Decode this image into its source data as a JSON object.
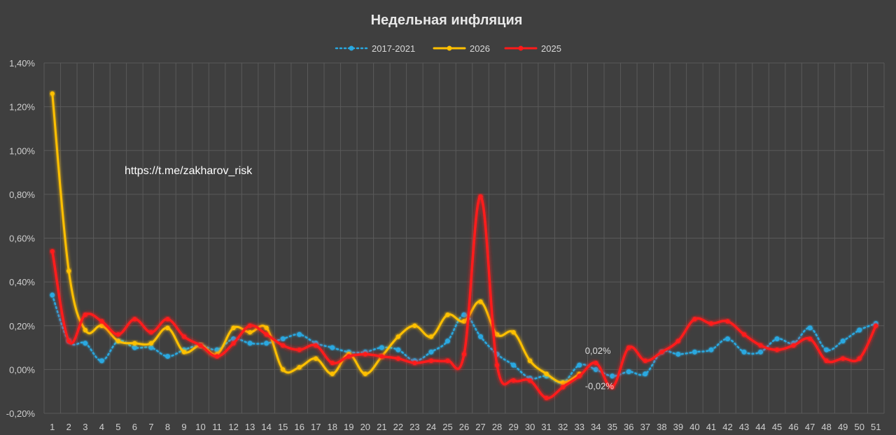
{
  "chart_data": {
    "type": "line",
    "title": "Недельная инфляция",
    "watermark": "https://t.me/zakharov_risk",
    "ylim": [
      -0.2,
      1.4
    ],
    "yticks": [
      -0.2,
      0.0,
      0.2,
      0.4,
      0.6,
      0.8,
      1.0,
      1.2,
      1.4
    ],
    "ytick_labels": [
      "-0,20%",
      "0,00%",
      "0,20%",
      "0,40%",
      "0,60%",
      "0,80%",
      "1,00%",
      "1,20%",
      "1,40%"
    ],
    "categories": [
      "1",
      "2",
      "3",
      "4",
      "5",
      "6",
      "7",
      "8",
      "9",
      "10",
      "11",
      "12",
      "13",
      "14",
      "15",
      "16",
      "17",
      "18",
      "19",
      "20",
      "21",
      "22",
      "23",
      "24",
      "25",
      "26",
      "27",
      "28",
      "29",
      "30",
      "31",
      "32",
      "33",
      "34",
      "35",
      "36",
      "37",
      "38",
      "39",
      "40",
      "41",
      "42",
      "43",
      "44",
      "45",
      "46",
      "47",
      "48",
      "49",
      "50",
      "51"
    ],
    "grid": true,
    "legend_position": "top-center",
    "series": [
      {
        "name": "2017-2021",
        "color": "#29a8e0",
        "style": "dotted",
        "values": [
          0.34,
          0.13,
          0.12,
          0.04,
          0.13,
          0.1,
          0.1,
          0.06,
          0.09,
          0.11,
          0.09,
          0.14,
          0.12,
          0.12,
          0.14,
          0.16,
          0.12,
          0.1,
          0.08,
          0.08,
          0.1,
          0.09,
          0.04,
          0.08,
          0.13,
          0.25,
          0.15,
          0.07,
          0.02,
          -0.04,
          -0.03,
          -0.06,
          0.02,
          0.0,
          -0.03,
          -0.01,
          -0.02,
          0.08,
          0.07,
          0.08,
          0.09,
          0.14,
          0.08,
          0.08,
          0.14,
          0.12,
          0.19,
          0.09,
          0.13,
          0.18,
          0.21
        ]
      },
      {
        "name": "2026",
        "color": "#ffc000",
        "style": "solid",
        "values": [
          1.26,
          0.45,
          0.18,
          0.2,
          0.13,
          0.12,
          0.12,
          0.19,
          0.08,
          0.11,
          0.07,
          0.19,
          0.17,
          0.19,
          0.0,
          0.01,
          0.05,
          -0.02,
          0.07,
          -0.02,
          0.06,
          0.15,
          0.2,
          0.15,
          0.25,
          0.22,
          0.31,
          0.16,
          0.17,
          0.04,
          -0.02,
          -0.06,
          -0.02,
          null,
          null,
          null,
          null,
          null,
          null,
          null,
          null,
          null,
          null,
          null,
          null,
          null,
          null,
          null,
          null,
          null,
          null
        ]
      },
      {
        "name": "2025",
        "color": "#ff1a1a",
        "style": "solid",
        "values": [
          0.54,
          0.13,
          0.25,
          0.22,
          0.16,
          0.23,
          0.17,
          0.23,
          0.15,
          0.11,
          0.06,
          0.12,
          0.2,
          0.16,
          0.11,
          0.09,
          0.11,
          0.03,
          0.06,
          0.07,
          0.06,
          0.05,
          0.03,
          0.04,
          0.04,
          0.07,
          0.79,
          0.02,
          -0.05,
          -0.05,
          -0.13,
          -0.08,
          -0.03,
          0.03,
          -0.08,
          0.1,
          0.04,
          0.08,
          0.13,
          0.23,
          0.21,
          0.22,
          0.16,
          0.11,
          0.09,
          0.11,
          0.14,
          0.04,
          0.05,
          0.05,
          0.2
        ]
      }
    ],
    "annotations": [
      {
        "text": "0,02%",
        "week": 33,
        "value": 0.02
      },
      {
        "text": "-0,02%",
        "week": 33,
        "value": -0.02
      }
    ]
  }
}
